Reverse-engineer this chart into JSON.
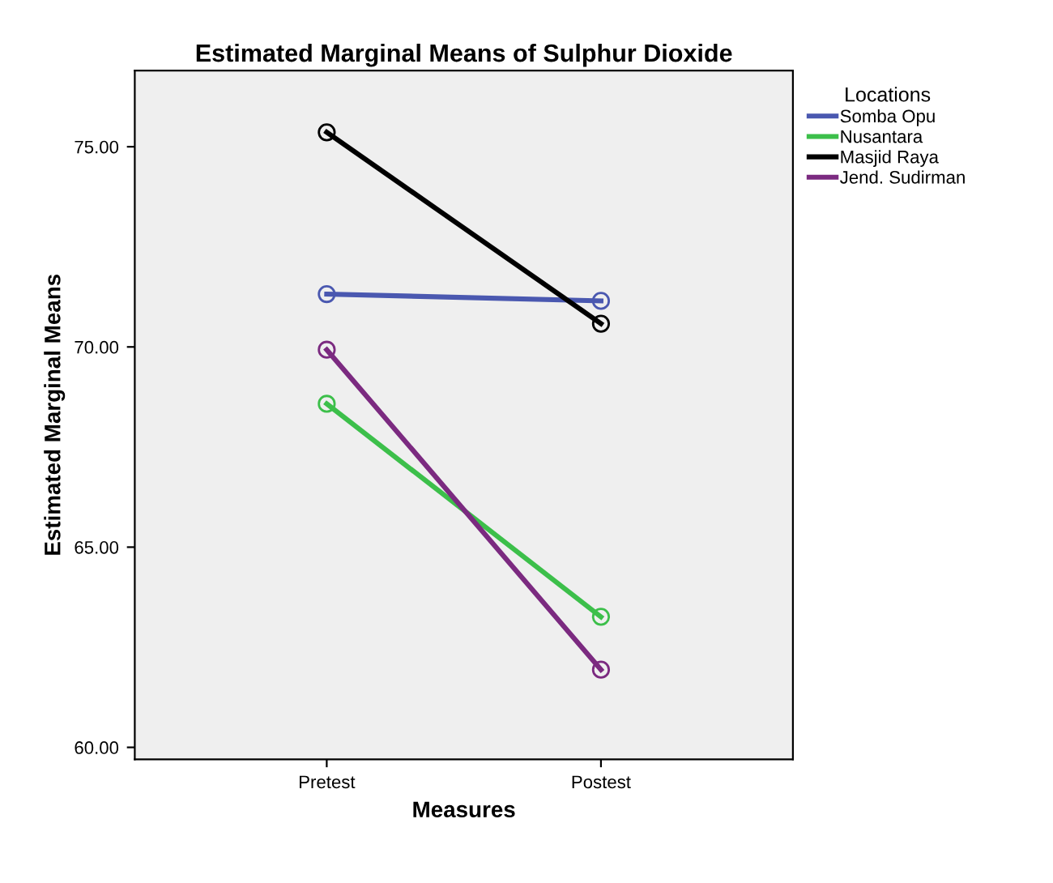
{
  "chart_data": {
    "type": "line",
    "title": "Estimated Marginal Means of Sulphur Dioxide",
    "xlabel": "Measures",
    "ylabel": "Estimated Marginal Means",
    "legend_title": "Locations",
    "categories": [
      "Pretest",
      "Postest"
    ],
    "series": [
      {
        "name": "Somba Opu",
        "color": "#4a58b0",
        "values": [
          71.32,
          71.15
        ]
      },
      {
        "name": "Nusantara",
        "color": "#3cbf4a",
        "values": [
          68.58,
          63.26
        ]
      },
      {
        "name": "Masjid Raya",
        "color": "#000000",
        "values": [
          75.36,
          70.58
        ]
      },
      {
        "name": "Jend. Sudirman",
        "color": "#7b2a80",
        "values": [
          69.93,
          61.94
        ]
      }
    ],
    "ylim": [
      59.7,
      76.9
    ],
    "yticks": [
      {
        "value": 60,
        "label": "60.00"
      },
      {
        "value": 65,
        "label": "65.00"
      },
      {
        "value": 70,
        "label": "70.00"
      },
      {
        "value": 75,
        "label": "75.00"
      }
    ],
    "marker": "circle",
    "grid": false,
    "legend": "top right"
  }
}
